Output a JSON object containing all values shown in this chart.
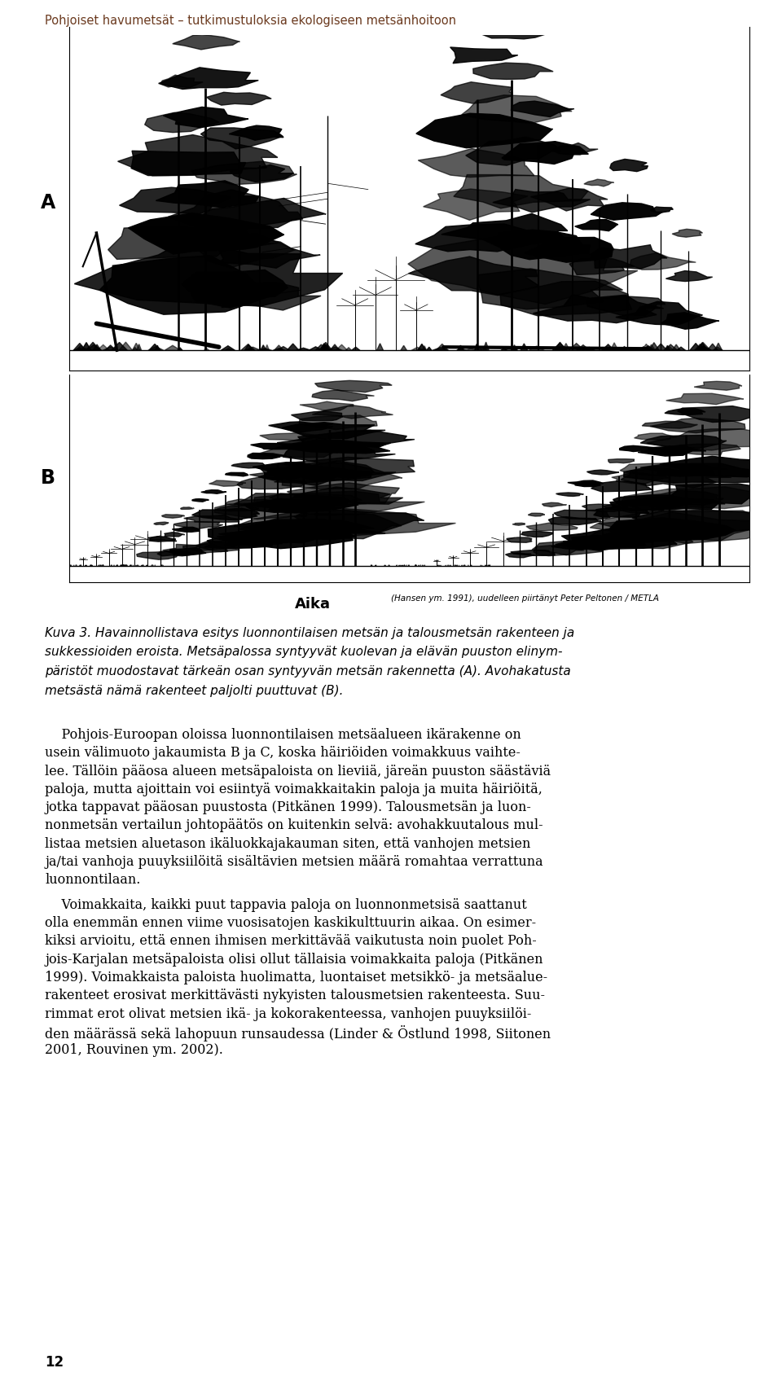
{
  "header_text": "Pohjoiset havumetsät – tutkimustuloksia ekologiseen metsänhoitoon",
  "header_color": "#6B3A1F",
  "header_fontsize": 10.5,
  "label_A": "A",
  "label_B": "B",
  "xlabel": "Aika",
  "credit_text": "(Hansen ym. 1991), uudelleen piirtänyt Peter Peltonen / METLA",
  "caption_line1": "Kuva 3. Havainnollistava esitys luonnontilaisen metsän ja talousmetsän rakenteen ja",
  "caption_line2": "sukkessioiden eroista. Metsäpalossa syntyyvät kuolevan ja elävän puuston elinym-",
  "caption_line3": "päristöt muodostavat tärkeän osan syntyyvän metsän rakennetta (A). Avohakatusta",
  "caption_line4": "metsästä nämä rakenteet paljolti puuttuvat (B).",
  "body_para1": "Pohjois-Euroopan oloissa luonnontilaisen metsäalueen ikärakenne on usein välimuoto jakaumista B ja C, koska häiriöiden voimakkuus vaihtelee. Tällöin pääosa alueen metsäpaloista on lieviiä, järeän puuston säästäviä paloja, mutta ajoittain voi esiintyä voimakkaitakin paloja ja muita häiriöitä, jotka tappavat pääosan puustosta (Pitkänen 1999). Talousmetsän ja luonnonmetsän vertailun johtopäätös on kuitenkin selvä: avohakkuutalous mullistaa metsien aluetason ikäluokkajakauman siten, että vanhojen metsien ja/tai vanhoja puuyksiilöitä sisältävien metsien määrä romahtaa verrattuna luonnontilaan.",
  "body_para2": "Voimakkaita, kaikki puut tappavia paloja on luonnonmetsisä saattanut olla enemmän ennen viime vuosisatojen kaskikulttuurin aikaa. On esimerkiksi arvioitu, että ennen ihmisen merkittävää vaikutusta noin puolet Pohjois-Karjalan metsäpaloista olisi ollut tällaisia voimakkaita paloja (Pitkänen 1999). Voimakkaista paloista huolimatta, luontaiset metsikkö- ja metsäaluerakenteet erosivat merkittävästi nykyisten talousmetsien rakenteesta. Suurimmat erot olivat metsien ikä- ja kokorakenteessa, vanhojen puuyksiilöiden määrässä sekä lahopuun runsaudessa (Linder & Östlund 1998, Siitonen 2001, Rouvinen ym. 2002).",
  "page_number": "12",
  "bg_color": "#FFFFFF",
  "text_color": "#000000",
  "fig_width": 9.6,
  "fig_height": 17.07,
  "dpi": 100
}
